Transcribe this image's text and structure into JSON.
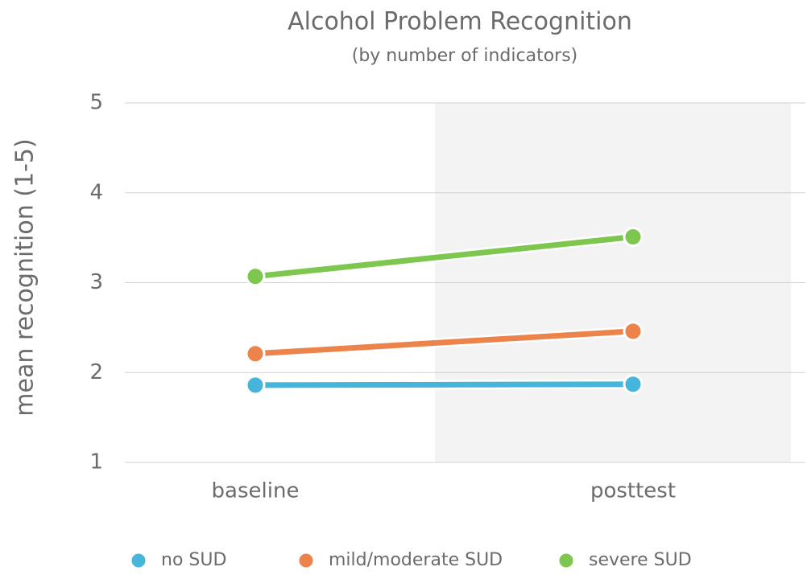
{
  "chart_data": {
    "type": "line",
    "title": "Alcohol Problem Recognition",
    "subtitle": "(by number of indicators)",
    "y_label": "mean recognition (1-5)",
    "categories": [
      "baseline",
      "posttest"
    ],
    "series": [
      {
        "name": "no SUD",
        "color": "#45b6d9",
        "values": [
          1.86,
          1.87
        ]
      },
      {
        "name": "mild/moderate SUD",
        "color": "#eb834a",
        "values": [
          2.21,
          2.46
        ]
      },
      {
        "name": "severe SUD",
        "color": "#7dc74f",
        "values": [
          3.07,
          3.51
        ]
      }
    ],
    "ylim": [
      1,
      5
    ],
    "yticks": [
      1,
      2,
      3,
      4,
      5
    ],
    "grid": true,
    "legend": "bottom"
  }
}
